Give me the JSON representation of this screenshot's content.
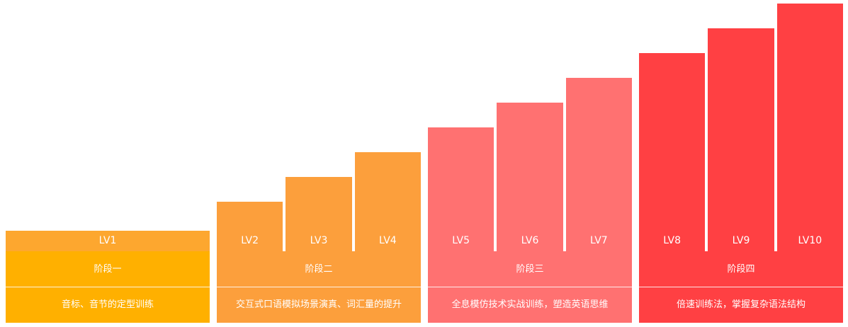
{
  "stages": [
    {
      "label": "阶段一",
      "description": "音标、音节的定型训练",
      "color": "#FFB000",
      "bar_color": "#FDA72F",
      "levels": [
        "LV1"
      ]
    },
    {
      "label": "阶段二",
      "description": "交互式口语模拟场景演真、词汇量的提升",
      "color": "#FC9F3C",
      "bar_color": "#FC9F3C",
      "levels": [
        "LV2",
        "LV3",
        "LV4"
      ]
    },
    {
      "label": "阶段三",
      "description": "全息模仿技术实战训练，塑造英语思维",
      "color": "#FF7171",
      "bar_color": "#FF7171",
      "levels": [
        "LV5",
        "LV6",
        "LV7"
      ]
    },
    {
      "label": "阶段四",
      "description": "倍速训练法，掌握复杂语法结构",
      "color": "#FF4043",
      "bar_color": "#FF4043",
      "levels": [
        "LV8",
        "LV9",
        "LV10"
      ]
    }
  ]
}
